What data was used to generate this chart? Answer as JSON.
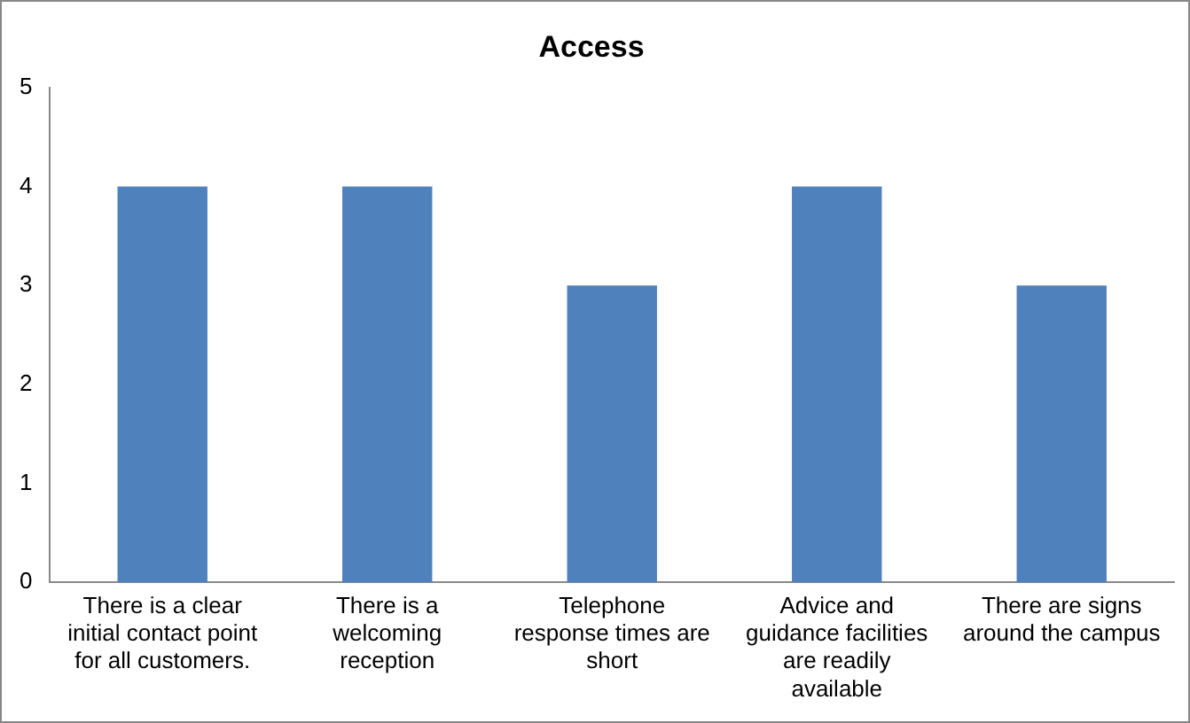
{
  "chart_data": {
    "type": "bar",
    "title": "Access",
    "categories": [
      "There is a clear initial contact point for all customers.",
      "There is a welcoming reception",
      "Telephone response times are short",
      "Advice and guidance facilities are readily available",
      "There are signs around the campus"
    ],
    "values": [
      4,
      4,
      3,
      4,
      3
    ],
    "color": "#4f81bd",
    "ylim": [
      0,
      5
    ],
    "yticks": [
      0,
      1,
      2,
      3,
      4,
      5
    ],
    "grid": false,
    "legend": false
  }
}
